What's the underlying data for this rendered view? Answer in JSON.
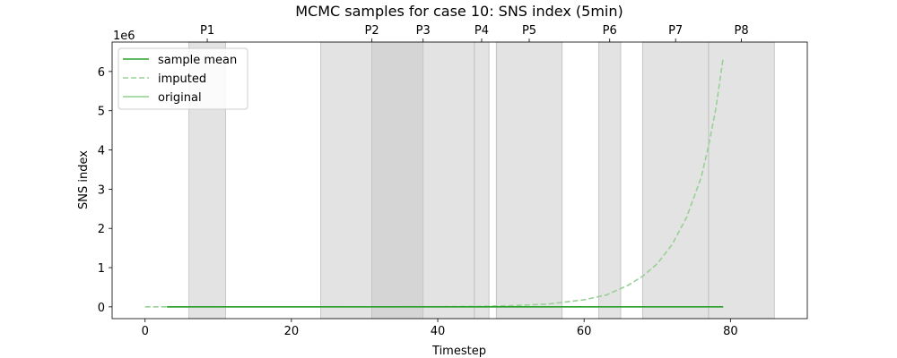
{
  "chart_data": {
    "type": "line",
    "title": "MCMC samples for case 10: SNS index (5min)",
    "xlabel": "Timestep",
    "ylabel": "SNS index",
    "y_offset_label": "1e6",
    "xlim": [
      -4.5,
      90.5
    ],
    "ylim": [
      -0.3,
      6.75
    ],
    "x_ticks": [
      0,
      20,
      40,
      60,
      80
    ],
    "y_ticks": [
      0,
      1,
      2,
      3,
      4,
      5,
      6
    ],
    "grid": false,
    "legend_position": "upper left",
    "periods": [
      {
        "label": "P1",
        "start": 6,
        "end": 11
      },
      {
        "label": "P2",
        "start": 24,
        "end": 38
      },
      {
        "label": "P3",
        "start": 31,
        "end": 45
      },
      {
        "label": "P4",
        "start": 45,
        "end": 47
      },
      {
        "label": "P5",
        "start": 48,
        "end": 57
      },
      {
        "label": "P6",
        "start": 62,
        "end": 65
      },
      {
        "label": "P7",
        "start": 68,
        "end": 77
      },
      {
        "label": "P8",
        "start": 77,
        "end": 86
      }
    ],
    "series": [
      {
        "name": "sample mean",
        "style": "solid",
        "color": "#2ca02c",
        "x": [
          3,
          79
        ],
        "y": [
          0.0,
          0.0
        ]
      },
      {
        "name": "imputed",
        "style": "dashed",
        "color": "#98d096",
        "x": [
          0,
          3,
          10,
          20,
          30,
          40,
          45,
          50,
          55,
          60,
          63,
          66,
          68,
          70,
          72,
          74,
          76,
          77,
          78,
          79
        ],
        "y": [
          0.0,
          0.0,
          0.0,
          0.0,
          0.0,
          0.005,
          0.01,
          0.03,
          0.07,
          0.18,
          0.3,
          0.55,
          0.78,
          1.1,
          1.58,
          2.28,
          3.3,
          4.1,
          5.05,
          6.35
        ]
      },
      {
        "name": "original",
        "style": "solid",
        "color": "#8fcf8c",
        "x": [
          3,
          79
        ],
        "y": [
          0.0,
          0.0
        ]
      }
    ]
  }
}
